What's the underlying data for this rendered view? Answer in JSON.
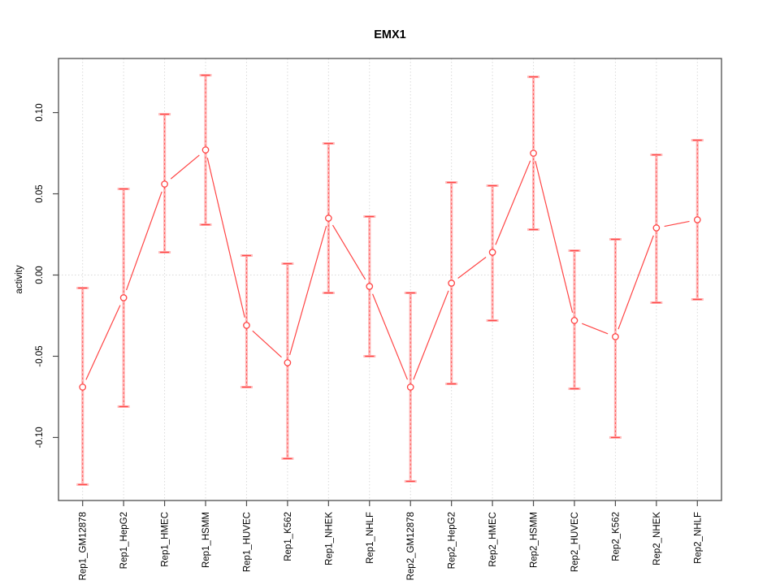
{
  "figure": {
    "background": "#ffffff"
  },
  "chart_data": {
    "type": "line",
    "title": "EMX1",
    "xlabel": "",
    "ylabel": "activity",
    "legend": "none",
    "marker": "open-circle",
    "categories": [
      "Rep1_GM12878",
      "Rep1_HepG2",
      "Rep1_HMEC",
      "Rep1_HSMM",
      "Rep1_HUVEC",
      "Rep1_K562",
      "Rep1_NHEK",
      "Rep1_NHLF",
      "Rep2_GM12878",
      "Rep2_HepG2",
      "Rep2_HMEC",
      "Rep2_HSMM",
      "Rep2_HUVEC",
      "Rep2_K562",
      "Rep2_NHEK",
      "Rep2_NHLF"
    ],
    "series": [
      {
        "name": "activity",
        "values": [
          -0.069,
          -0.014,
          0.056,
          0.077,
          -0.031,
          -0.054,
          0.035,
          -0.007,
          -0.069,
          -0.005,
          0.014,
          0.075,
          -0.028,
          -0.038,
          0.029,
          0.034
        ],
        "error_upper": [
          -0.008,
          0.053,
          0.099,
          0.123,
          0.012,
          0.007,
          0.081,
          0.036,
          -0.011,
          0.057,
          0.055,
          0.122,
          0.015,
          0.022,
          0.074,
          0.083
        ],
        "error_lower": [
          -0.129,
          -0.081,
          0.014,
          0.031,
          -0.069,
          -0.113,
          -0.011,
          -0.05,
          -0.127,
          -0.067,
          -0.028,
          0.028,
          -0.07,
          -0.1,
          -0.017,
          -0.015
        ]
      }
    ],
    "ylim": [
      -0.1388,
      0.1333
    ],
    "yticks": {
      "values": [
        0.1,
        0.05,
        0.0,
        -0.05,
        -0.1
      ],
      "labels": [
        "0.10",
        "0.05",
        "0.00",
        "-0.05",
        "-0.10"
      ]
    },
    "grid": {
      "vertical": "dotted line at every category",
      "horizontal": "dotted line at y = 0 only"
    },
    "colors": {
      "line": "#ff4545",
      "error_band": "#ffb9b9",
      "grid": "#d9d9d9",
      "frame": "#4d4d4d",
      "text": "#000000",
      "background": "#ffffff"
    }
  }
}
